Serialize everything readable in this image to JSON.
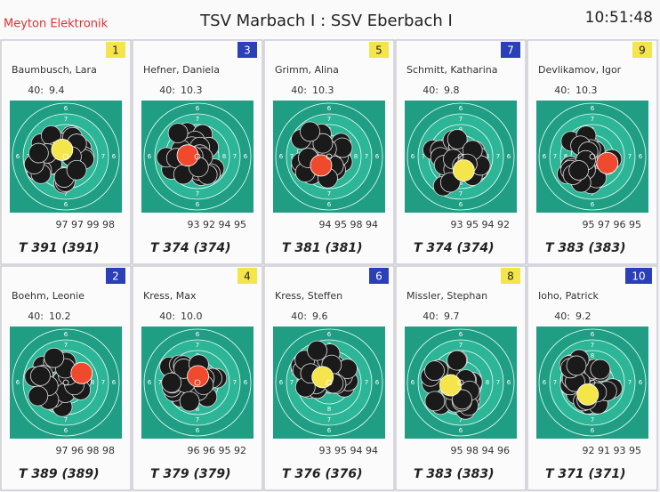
{
  "header": {
    "brand": "Meyton Elektronik",
    "title": "TSV Marbach I : SSV Eberbach I",
    "time": "10:51:48"
  },
  "target": {
    "ring_labels": [
      "6",
      "7",
      "8"
    ]
  },
  "shooters": [
    {
      "number": "1",
      "name": "Baumbusch, Lara",
      "shots": "40:",
      "last": "9.4",
      "series": "97 97 99 98",
      "total": "T 391 (391)",
      "badge_color": "#f4e64a",
      "hit_color": "#f4e64a"
    },
    {
      "number": "3",
      "name": "Hefner, Daniela",
      "shots": "40:",
      "last": "10.3",
      "series": "93 92 94 95",
      "total": "T 374 (374)",
      "badge_color": "#2a3fb8",
      "hit_color": "#f04a2e"
    },
    {
      "number": "5",
      "name": "Grimm, Alina",
      "shots": "40:",
      "last": "10.3",
      "series": "94 95 98 94",
      "total": "T 381 (381)",
      "badge_color": "#f4e64a",
      "hit_color": "#f04a2e"
    },
    {
      "number": "7",
      "name": "Schmitt, Katharina",
      "shots": "40:",
      "last": "9.8",
      "series": "93 95 94 92",
      "total": "T 374 (374)",
      "badge_color": "#2a3fb8",
      "hit_color": "#f4e64a"
    },
    {
      "number": "9",
      "name": "Devlikamov, Igor",
      "shots": "40:",
      "last": "10.3",
      "series": "95 97 96 95",
      "total": "T 383 (383)",
      "badge_color": "#f4e64a",
      "hit_color": "#f04a2e"
    },
    {
      "number": "2",
      "name": "Boehm, Leonie",
      "shots": "40:",
      "last": "10.2",
      "series": "97 96 98 98",
      "total": "T 389 (389)",
      "badge_color": "#2a3fb8",
      "hit_color": "#f04a2e"
    },
    {
      "number": "4",
      "name": "Kress, Max",
      "shots": "40:",
      "last": "10.0",
      "series": "96 96 95 92",
      "total": "T 379 (379)",
      "badge_color": "#f4e64a",
      "hit_color": "#f04a2e"
    },
    {
      "number": "6",
      "name": "Kress, Steffen",
      "shots": "40:",
      "last": "9.6",
      "series": "93 95 94 94",
      "total": "T 376 (376)",
      "badge_color": "#2a3fb8",
      "hit_color": "#f4e64a"
    },
    {
      "number": "8",
      "name": "Missler, Stephan",
      "shots": "40:",
      "last": "9.7",
      "series": "95 98 94 96",
      "total": "T 383 (383)",
      "badge_color": "#f4e64a",
      "hit_color": "#f4e64a"
    },
    {
      "number": "10",
      "name": "Ioho, Patrick",
      "shots": "40:",
      "last": "9.2",
      "series": "92 91 93 95",
      "total": "T 371 (371)",
      "badge_color": "#2a3fb8",
      "hit_color": "#f4e64a"
    }
  ]
}
